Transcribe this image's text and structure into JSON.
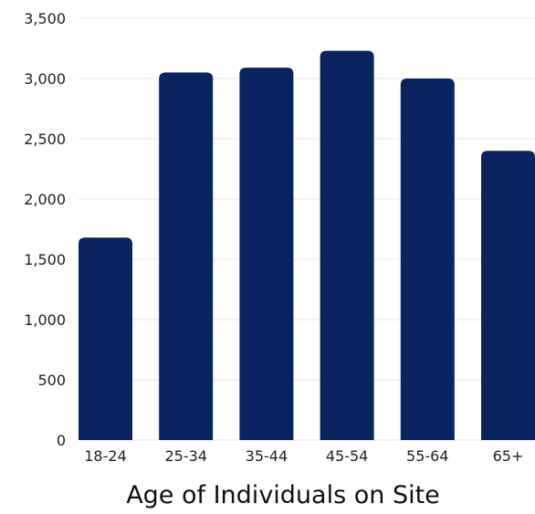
{
  "chart_data": {
    "type": "bar",
    "title": "",
    "xlabel": "Age of Individuals on Site",
    "ylabel": "",
    "categories": [
      "18-24",
      "25-34",
      "35-44",
      "45-54",
      "55-64",
      "65+"
    ],
    "values": [
      1680,
      3050,
      3090,
      3230,
      3000,
      2400
    ],
    "ylim": [
      0,
      3500
    ],
    "yticks": [
      0,
      500,
      1000,
      1500,
      2000,
      2500,
      3000,
      3500
    ],
    "ytick_labels": [
      "0",
      "500",
      "1,000",
      "1,500",
      "2,000",
      "2,500",
      "3,000",
      "3,500"
    ],
    "grid": true,
    "bar_color": "#0a2361",
    "grid_color": "#e6e6e6"
  }
}
